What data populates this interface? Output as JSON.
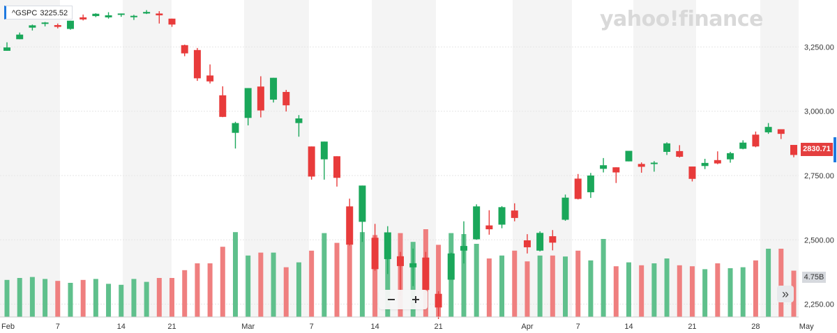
{
  "ticker": {
    "symbol": "^GSPC",
    "value": "3225.52"
  },
  "brand": {
    "watermark": "yahoo!finance"
  },
  "price_badge": "2830.71",
  "volume_badge": "4.75B",
  "controls": {
    "zoom_out": "−",
    "zoom_in": "+",
    "pan_right": "»"
  },
  "colors": {
    "up": "#1aa75a",
    "down": "#e83b3b",
    "up_volume": "#5fc08c",
    "down_volume": "#ef7f7f",
    "accent": "#1f7ae0"
  },
  "icons": {
    "zoom_out": "minus-icon",
    "zoom_in": "plus-icon",
    "pan_right": "double-chevron-right-icon"
  },
  "chart_data": {
    "type": "candlestick",
    "y_ticks": [
      "3,250.00",
      "3,000.00",
      "2,750.00",
      "2,500.00",
      "2,250.00"
    ],
    "x_tick_labels": [
      "Feb",
      "7",
      "14",
      "21",
      "Mar",
      "7",
      "14",
      "21",
      "Apr",
      "7",
      "14",
      "21",
      "28",
      "May"
    ],
    "y_range": [
      2200,
      3400
    ],
    "candles": [
      {
        "date": "Feb 3",
        "open": 3235,
        "high": 3268,
        "low": 3235,
        "close": 3248
      },
      {
        "date": "Feb 4",
        "open": 3280,
        "high": 3306,
        "low": 3280,
        "close": 3298
      },
      {
        "date": "Feb 5",
        "open": 3325,
        "high": 3337,
        "low": 3314,
        "close": 3334
      },
      {
        "date": "Feb 6",
        "open": 3344,
        "high": 3347,
        "low": 3330,
        "close": 3345
      },
      {
        "date": "Feb 7",
        "open": 3335,
        "high": 3341,
        "low": 3322,
        "close": 3328
      },
      {
        "date": "Feb 10",
        "open": 3320,
        "high": 3352,
        "low": 3317,
        "close": 3352
      },
      {
        "date": "Feb 11",
        "open": 3365,
        "high": 3376,
        "low": 3353,
        "close": 3357
      },
      {
        "date": "Feb 12",
        "open": 3370,
        "high": 3381,
        "low": 3366,
        "close": 3379
      },
      {
        "date": "Feb 13",
        "open": 3365,
        "high": 3385,
        "low": 3360,
        "close": 3373
      },
      {
        "date": "Feb 14",
        "open": 3378,
        "high": 3380,
        "low": 3367,
        "close": 3380
      },
      {
        "date": "Feb 18",
        "open": 3369,
        "high": 3375,
        "low": 3355,
        "close": 3371
      },
      {
        "date": "Feb 19",
        "open": 3380,
        "high": 3393,
        "low": 3378,
        "close": 3386
      },
      {
        "date": "Feb 20",
        "open": 3380,
        "high": 3389,
        "low": 3341,
        "close": 3373
      },
      {
        "date": "Feb 21",
        "open": 3360,
        "high": 3360,
        "low": 3328,
        "close": 3337
      },
      {
        "date": "Feb 24",
        "open": 3257,
        "high": 3259,
        "low": 3214,
        "close": 3225
      },
      {
        "date": "Feb 25",
        "open": 3238,
        "high": 3246,
        "low": 3118,
        "close": 3128
      },
      {
        "date": "Feb 26",
        "open": 3139,
        "high": 3182,
        "low": 3108,
        "close": 3116
      },
      {
        "date": "Feb 27",
        "open": 3062,
        "high": 3097,
        "low": 2977,
        "close": 2978
      },
      {
        "date": "Feb 28",
        "open": 2916,
        "high": 2959,
        "low": 2855,
        "close": 2954
      },
      {
        "date": "Mar 2",
        "open": 2974,
        "high": 3090,
        "low": 2945,
        "close": 3090
      },
      {
        "date": "Mar 3",
        "open": 3096,
        "high": 3136,
        "low": 2976,
        "close": 3003
      },
      {
        "date": "Mar 4",
        "open": 3045,
        "high": 3130,
        "low": 3034,
        "close": 3130
      },
      {
        "date": "Mar 5",
        "open": 3075,
        "high": 3083,
        "low": 2999,
        "close": 3023
      },
      {
        "date": "Mar 6",
        "open": 2954,
        "high": 2985,
        "low": 2901,
        "close": 2972
      },
      {
        "date": "Mar 9",
        "open": 2863,
        "high": 2863,
        "low": 2734,
        "close": 2746
      },
      {
        "date": "Mar 10",
        "open": 2813,
        "high": 2882,
        "low": 2734,
        "close": 2882
      },
      {
        "date": "Mar 11",
        "open": 2825,
        "high": 2825,
        "low": 2707,
        "close": 2741
      },
      {
        "date": "Mar 12",
        "open": 2630,
        "high": 2660,
        "low": 2478,
        "close": 2481
      },
      {
        "date": "Mar 13",
        "open": 2570,
        "high": 2711,
        "low": 2492,
        "close": 2711
      },
      {
        "date": "Mar 16",
        "open": 2508,
        "high": 2562,
        "low": 2380,
        "close": 2386
      },
      {
        "date": "Mar 17",
        "open": 2425,
        "high": 2553,
        "low": 2367,
        "close": 2529
      },
      {
        "date": "Mar 18",
        "open": 2436,
        "high": 2453,
        "low": 2281,
        "close": 2398
      },
      {
        "date": "Mar 19",
        "open": 2393,
        "high": 2466,
        "low": 2320,
        "close": 2409
      },
      {
        "date": "Mar 20",
        "open": 2431,
        "high": 2453,
        "low": 2295,
        "close": 2305
      },
      {
        "date": "Mar 23",
        "open": 2290,
        "high": 2300,
        "low": 2192,
        "close": 2237
      },
      {
        "date": "Mar 24",
        "open": 2345,
        "high": 2450,
        "low": 2345,
        "close": 2447
      },
      {
        "date": "Mar 25",
        "open": 2458,
        "high": 2572,
        "low": 2408,
        "close": 2476
      },
      {
        "date": "Mar 26",
        "open": 2502,
        "high": 2638,
        "low": 2500,
        "close": 2630
      },
      {
        "date": "Mar 27",
        "open": 2556,
        "high": 2615,
        "low": 2520,
        "close": 2541
      },
      {
        "date": "Mar 30",
        "open": 2559,
        "high": 2631,
        "low": 2545,
        "close": 2627
      },
      {
        "date": "Mar 31",
        "open": 2614,
        "high": 2642,
        "low": 2572,
        "close": 2585
      },
      {
        "date": "Apr 1",
        "open": 2498,
        "high": 2522,
        "low": 2447,
        "close": 2471
      },
      {
        "date": "Apr 2",
        "open": 2458,
        "high": 2533,
        "low": 2455,
        "close": 2527
      },
      {
        "date": "Apr 3",
        "open": 2514,
        "high": 2538,
        "low": 2459,
        "close": 2489
      },
      {
        "date": "Apr 6",
        "open": 2578,
        "high": 2676,
        "low": 2574,
        "close": 2664
      },
      {
        "date": "Apr 7",
        "open": 2738,
        "high": 2756,
        "low": 2657,
        "close": 2659
      },
      {
        "date": "Apr 8",
        "open": 2685,
        "high": 2760,
        "low": 2663,
        "close": 2750
      },
      {
        "date": "Apr 9",
        "open": 2776,
        "high": 2818,
        "low": 2762,
        "close": 2790
      },
      {
        "date": "Apr 13",
        "open": 2782,
        "high": 2782,
        "low": 2721,
        "close": 2762
      },
      {
        "date": "Apr 14",
        "open": 2805,
        "high": 2845,
        "low": 2805,
        "close": 2846
      },
      {
        "date": "Apr 15",
        "open": 2795,
        "high": 2801,
        "low": 2761,
        "close": 2784
      },
      {
        "date": "Apr 16",
        "open": 2799,
        "high": 2806,
        "low": 2765,
        "close": 2800
      },
      {
        "date": "Apr 17",
        "open": 2842,
        "high": 2879,
        "low": 2830,
        "close": 2875
      },
      {
        "date": "Apr 20",
        "open": 2845,
        "high": 2868,
        "low": 2820,
        "close": 2823
      },
      {
        "date": "Apr 21",
        "open": 2785,
        "high": 2785,
        "low": 2727,
        "close": 2737
      },
      {
        "date": "Apr 22",
        "open": 2787,
        "high": 2815,
        "low": 2775,
        "close": 2799
      },
      {
        "date": "Apr 23",
        "open": 2810,
        "high": 2844,
        "low": 2794,
        "close": 2797
      },
      {
        "date": "Apr 24",
        "open": 2813,
        "high": 2842,
        "low": 2800,
        "close": 2837
      },
      {
        "date": "Apr 27",
        "open": 2854,
        "high": 2887,
        "low": 2852,
        "close": 2878
      },
      {
        "date": "Apr 28",
        "open": 2909,
        "high": 2921,
        "low": 2860,
        "close": 2863
      },
      {
        "date": "Apr 29",
        "open": 2918,
        "high": 2954,
        "low": 2912,
        "close": 2939
      },
      {
        "date": "Apr 30",
        "open": 2930,
        "high": 2930,
        "low": 2892,
        "close": 2912
      },
      {
        "date": "May 1",
        "open": 2869,
        "high": 2869,
        "low": 2821,
        "close": 2830
      }
    ],
    "volume": [
      {
        "date": "Feb 3",
        "value": 3.8
      },
      {
        "date": "Feb 4",
        "value": 4.0
      },
      {
        "date": "Feb 5",
        "value": 4.1
      },
      {
        "date": "Feb 6",
        "value": 3.9
      },
      {
        "date": "Feb 7",
        "value": 3.7
      },
      {
        "date": "Feb 10",
        "value": 3.5
      },
      {
        "date": "Feb 11",
        "value": 3.8
      },
      {
        "date": "Feb 12",
        "value": 3.9
      },
      {
        "date": "Feb 13",
        "value": 3.4
      },
      {
        "date": "Feb 14",
        "value": 3.3
      },
      {
        "date": "Feb 18",
        "value": 3.9
      },
      {
        "date": "Feb 19",
        "value": 3.6
      },
      {
        "date": "Feb 20",
        "value": 4.0
      },
      {
        "date": "Feb 21",
        "value": 4.0
      },
      {
        "date": "Feb 24",
        "value": 4.8
      },
      {
        "date": "Feb 25",
        "value": 5.5
      },
      {
        "date": "Feb 26",
        "value": 5.5
      },
      {
        "date": "Feb 27",
        "value": 7.2
      },
      {
        "date": "Feb 28",
        "value": 8.7
      },
      {
        "date": "Mar 2",
        "value": 6.3
      },
      {
        "date": "Mar 3",
        "value": 6.6
      },
      {
        "date": "Mar 4",
        "value": 6.6
      },
      {
        "date": "Mar 5",
        "value": 5.1
      },
      {
        "date": "Mar 6",
        "value": 5.6
      },
      {
        "date": "Mar 9",
        "value": 6.8
      },
      {
        "date": "Mar 10",
        "value": 8.6
      },
      {
        "date": "Mar 11",
        "value": 7.6
      },
      {
        "date": "Mar 12",
        "value": 7.4
      },
      {
        "date": "Mar 13",
        "value": 8.7
      },
      {
        "date": "Mar 16",
        "value": 8.4
      },
      {
        "date": "Mar 17",
        "value": 8.3
      },
      {
        "date": "Mar 18",
        "value": 8.6
      },
      {
        "date": "Mar 19",
        "value": 7.7
      },
      {
        "date": "Mar 20",
        "value": 9.0
      },
      {
        "date": "Mar 23",
        "value": 7.4
      },
      {
        "date": "Mar 24",
        "value": 8.6
      },
      {
        "date": "Mar 25",
        "value": 8.5
      },
      {
        "date": "Mar 26",
        "value": 7.5
      },
      {
        "date": "Mar 27",
        "value": 6.0
      },
      {
        "date": "Mar 30",
        "value": 6.3
      },
      {
        "date": "Mar 31",
        "value": 6.8
      },
      {
        "date": "Apr 1",
        "value": 5.7
      },
      {
        "date": "Apr 2",
        "value": 6.3
      },
      {
        "date": "Apr 3",
        "value": 6.3
      },
      {
        "date": "Apr 6",
        "value": 6.2
      },
      {
        "date": "Apr 7",
        "value": 6.8
      },
      {
        "date": "Apr 8",
        "value": 5.8
      },
      {
        "date": "Apr 9",
        "value": 8.0
      },
      {
        "date": "Apr 13",
        "value": 5.2
      },
      {
        "date": "Apr 14",
        "value": 5.6
      },
      {
        "date": "Apr 15",
        "value": 5.3
      },
      {
        "date": "Apr 16",
        "value": 5.5
      },
      {
        "date": "Apr 17",
        "value": 6.0
      },
      {
        "date": "Apr 20",
        "value": 5.3
      },
      {
        "date": "Apr 21",
        "value": 5.2
      },
      {
        "date": "Apr 22",
        "value": 4.9
      },
      {
        "date": "Apr 23",
        "value": 5.5
      },
      {
        "date": "Apr 24",
        "value": 5.0
      },
      {
        "date": "Apr 27",
        "value": 5.1
      },
      {
        "date": "Apr 28",
        "value": 5.8
      },
      {
        "date": "Apr 29",
        "value": 7.0
      },
      {
        "date": "Apr 30",
        "value": 7.0
      },
      {
        "date": "May 1",
        "value": 4.75
      }
    ]
  }
}
